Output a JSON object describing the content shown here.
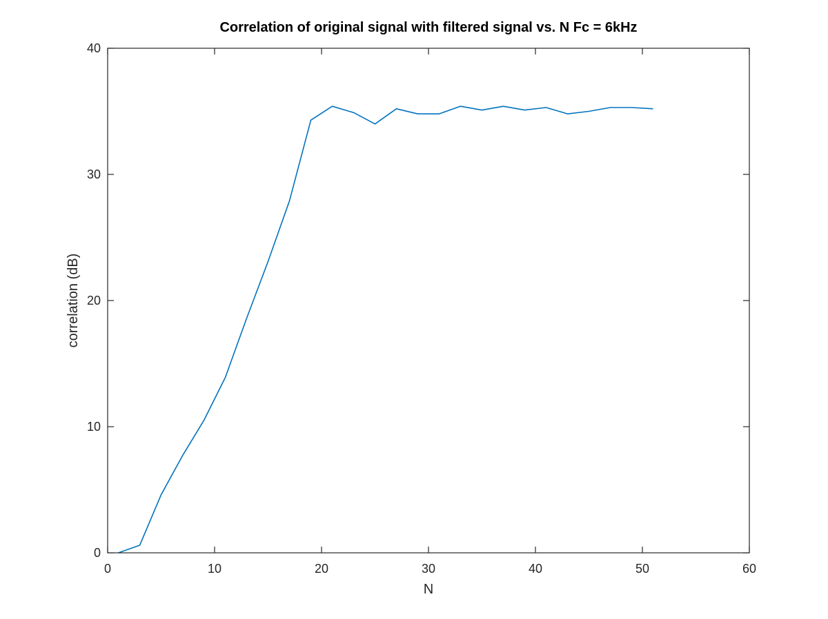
{
  "chart_data": {
    "type": "line",
    "title": "Correlation of original signal with filtered signal vs. N Fc = 6kHz",
    "xlabel": "N",
    "ylabel": "correlation (dB)",
    "xlim": [
      0,
      60
    ],
    "ylim": [
      0,
      40
    ],
    "xticks": [
      0,
      10,
      20,
      30,
      40,
      50,
      60
    ],
    "yticks": [
      0,
      10,
      20,
      30,
      40
    ],
    "grid": false,
    "series": [
      {
        "color": "#0072BD",
        "x": [
          1,
          3,
          5,
          7,
          9,
          11,
          13,
          15,
          17,
          19,
          21,
          23,
          25,
          27,
          29,
          31,
          33,
          35,
          37,
          39,
          41,
          43,
          45,
          47,
          49,
          51
        ],
        "y": [
          0.0,
          0.6,
          4.6,
          7.7,
          10.5,
          13.9,
          18.6,
          23.1,
          27.9,
          34.3,
          35.4,
          34.9,
          34.0,
          35.2,
          34.8,
          34.8,
          35.4,
          35.1,
          35.4,
          35.1,
          35.3,
          34.8,
          35.0,
          35.3,
          35.3,
          35.2
        ]
      }
    ]
  }
}
